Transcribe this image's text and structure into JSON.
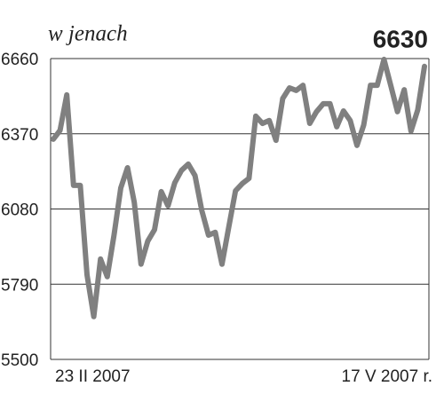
{
  "chart_data": {
    "type": "line",
    "subtitle": "w jenach",
    "categories": [
      "23 II 2007",
      null,
      null,
      null,
      null,
      null,
      null,
      null,
      null,
      null,
      null,
      null,
      null,
      null,
      null,
      null,
      null,
      null,
      null,
      null,
      null,
      null,
      null,
      null,
      null,
      null,
      null,
      null,
      null,
      null,
      null,
      null,
      null,
      null,
      null,
      null,
      null,
      null,
      null,
      null,
      null,
      null,
      null,
      null,
      null,
      null,
      null,
      null,
      null,
      null,
      null,
      null,
      null,
      null,
      null,
      "17 V 2007 r."
    ],
    "values": [
      6349,
      6383,
      6520,
      6171,
      6171,
      5826,
      5665,
      5887,
      5819,
      5979,
      6161,
      6239,
      6106,
      5867,
      5956,
      6000,
      6147,
      6092,
      6181,
      6229,
      6253,
      6209,
      6075,
      5979,
      5990,
      5867,
      6010,
      6150,
      6178,
      6198,
      6438,
      6410,
      6421,
      6345,
      6506,
      6547,
      6537,
      6557,
      6410,
      6455,
      6486,
      6486,
      6397,
      6458,
      6421,
      6325,
      6404,
      6557,
      6557,
      6657,
      6557,
      6455,
      6540,
      6380,
      6462,
      6630
    ],
    "color": "#808080",
    "ylim": [
      5500,
      6660
    ],
    "yticks": [
      5500,
      5790,
      6080,
      6370,
      6660
    ],
    "grid": true
  }
}
